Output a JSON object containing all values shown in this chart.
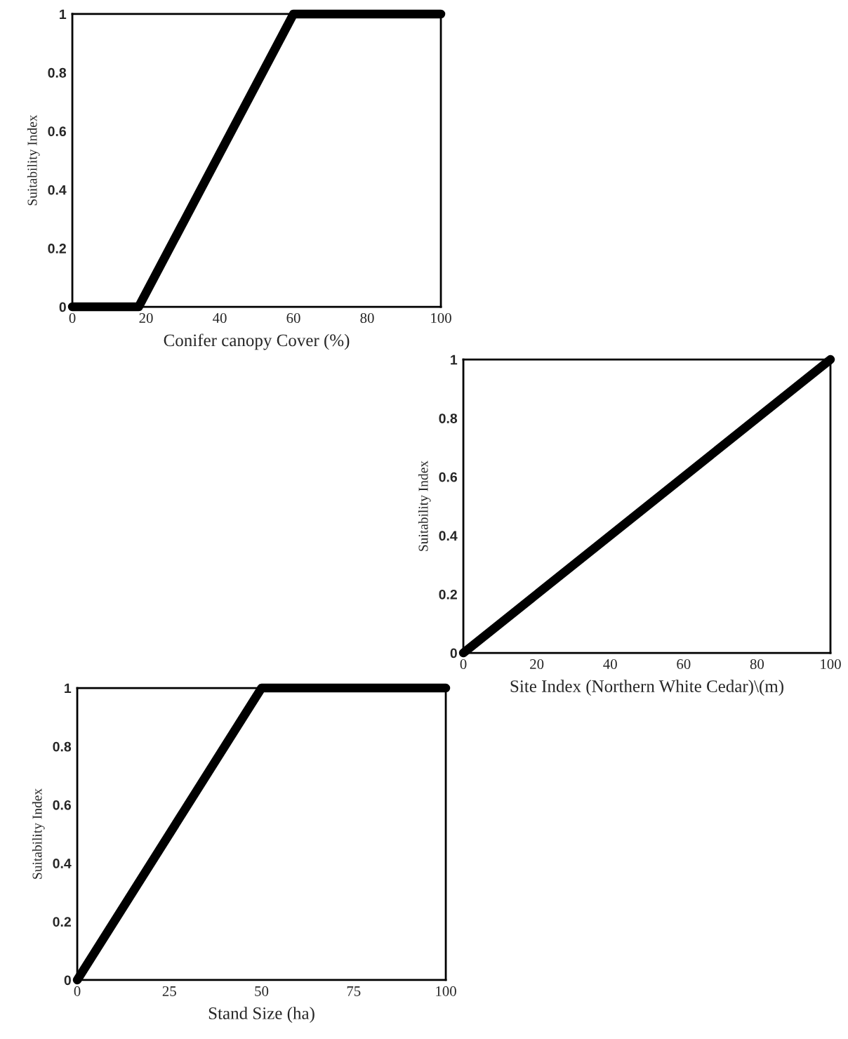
{
  "chart_data": [
    {
      "type": "line",
      "xlabel": "Conifer canopy Cover (%)",
      "ylabel": "Suitability Index",
      "x": [
        0,
        18,
        60,
        100
      ],
      "values": [
        0,
        0,
        1,
        1
      ],
      "color": "#000000",
      "xlim": [
        0,
        100
      ],
      "ylim": [
        0,
        1
      ],
      "xticks": [
        0,
        20,
        40,
        60,
        80,
        100
      ],
      "yticks": [
        0,
        0.2,
        0.4,
        0.6,
        0.8,
        1
      ],
      "grid": false,
      "legend": false
    },
    {
      "type": "line",
      "xlabel": "Site Index (Northern White Cedar)\\(m)",
      "ylabel": "Suitability Index",
      "x": [
        0,
        100
      ],
      "values": [
        0,
        1
      ],
      "color": "#000000",
      "xlim": [
        0,
        100
      ],
      "ylim": [
        0,
        1
      ],
      "xticks": [
        0,
        20,
        40,
        60,
        80,
        100
      ],
      "yticks": [
        0,
        0.2,
        0.4,
        0.6,
        0.8,
        1
      ],
      "grid": false,
      "legend": false
    },
    {
      "type": "line",
      "xlabel": "Stand Size (ha)",
      "ylabel": "Suitability Index",
      "x": [
        0,
        50,
        100
      ],
      "values": [
        0,
        1,
        1
      ],
      "color": "#000000",
      "xlim": [
        0,
        100
      ],
      "ylim": [
        0,
        1
      ],
      "xticks": [
        0,
        25,
        50,
        75,
        100
      ],
      "yticks": [
        0,
        0.2,
        0.4,
        0.6,
        0.8,
        1
      ],
      "grid": false,
      "legend": false
    }
  ]
}
